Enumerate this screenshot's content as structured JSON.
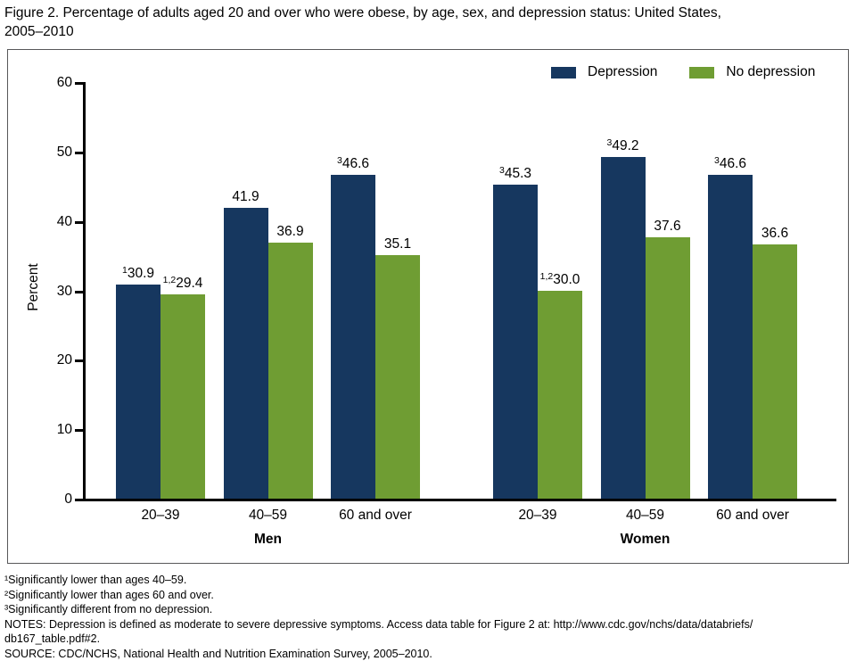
{
  "title": {
    "lines": [
      "Figure 2. Percentage of adults aged 20 and over who were obese, by age, sex, and depression status: United States,",
      "2005–2010"
    ]
  },
  "chart_data": {
    "type": "bar",
    "title": "Figure 2. Percentage of adults aged 20 and over who were obese, by age, sex, and depression status: United States, 2005–2010",
    "ylabel": "Percent",
    "ylim": [
      0,
      60
    ],
    "yticks": [
      0,
      10,
      20,
      30,
      40,
      50,
      60
    ],
    "grid": false,
    "legend_position": "top-right",
    "series_names": [
      "Depression",
      "No depression"
    ],
    "series_colors": [
      "#16375f",
      "#6f9d33"
    ],
    "groups": [
      {
        "label": "Men",
        "categories": [
          "20–39",
          "40–59",
          "60 and over"
        ],
        "series": [
          {
            "name": "Depression",
            "values": [
              30.9,
              41.9,
              46.6
            ],
            "sups": [
              "1",
              "",
              "3"
            ]
          },
          {
            "name": "No depression",
            "values": [
              29.4,
              36.9,
              35.1
            ],
            "sups": [
              "1,2",
              "",
              ""
            ]
          }
        ]
      },
      {
        "label": "Women",
        "categories": [
          "20–39",
          "40–59",
          "60 and over"
        ],
        "series": [
          {
            "name": "Depression",
            "values": [
              45.3,
              49.2,
              46.6
            ],
            "sups": [
              "3",
              "3",
              "3"
            ]
          },
          {
            "name": "No depression",
            "values": [
              30.0,
              37.6,
              36.6
            ],
            "sups": [
              "1,2",
              "",
              ""
            ]
          }
        ]
      }
    ]
  },
  "footnotes": {
    "lines": [
      "¹Significantly lower than ages 40–59.",
      "²Significantly lower than ages 60 and over.",
      "³Significantly different from no depression.",
      "NOTES: Depression is defined as moderate to severe depressive symptoms. Access data table for Figure 2 at: http://www.cdc.gov/nchs/data/databriefs/",
      "db167_table.pdf#2.",
      "SOURCE: CDC/NCHS, National Health and Nutrition Examination Survey, 2005–2010."
    ]
  }
}
